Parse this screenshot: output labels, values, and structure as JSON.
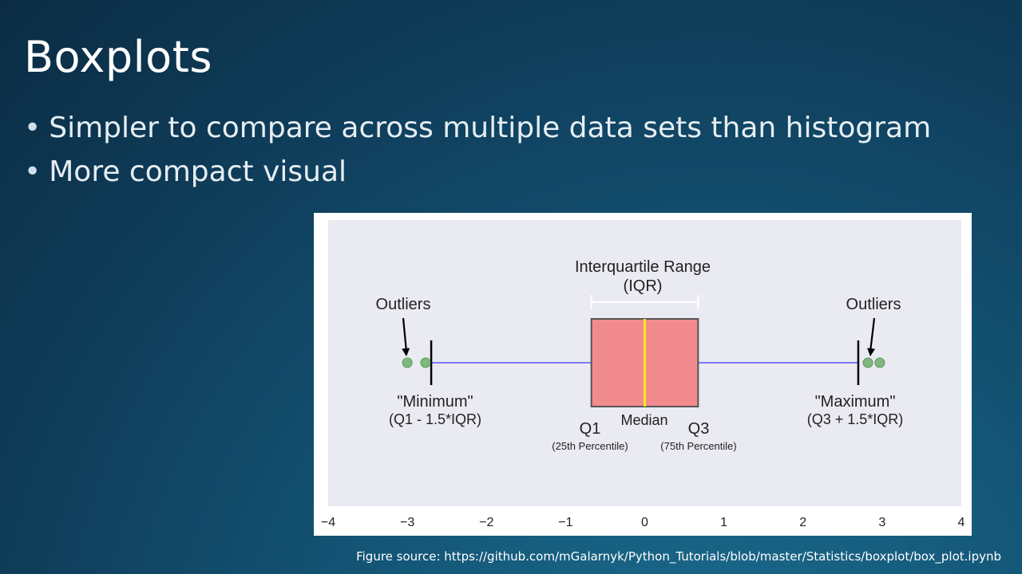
{
  "slide": {
    "title": "Boxplots",
    "bullets": [
      "Simpler to compare across multiple data sets than histogram",
      "More compact visual"
    ],
    "caption": "Figure source:  https://github.com/mGalarnyk/Python_Tutorials/blob/master/Statistics/boxplot/box_plot.ipynb"
  },
  "colors": {
    "plot_bg": "#eaeaf2",
    "box_fill": "#f28b8e",
    "median": "#ffff00",
    "whisker": "#7a7aff",
    "outlier": "#7fb77e"
  },
  "chart_data": {
    "type": "boxplot",
    "x_ticks": [
      "−4",
      "−3",
      "−2",
      "−1",
      "0",
      "1",
      "2",
      "3",
      "4"
    ],
    "xlim": [
      -4,
      4
    ],
    "q1": -0.6745,
    "median": 0,
    "q3": 0.6745,
    "whisker_low": -2.698,
    "whisker_high": 2.698,
    "outliers": [
      -3.0,
      -2.77,
      2.82,
      2.97
    ],
    "annotations": {
      "iqr_line1": "Interquartile Range",
      "iqr_line2": "(IQR)",
      "outliers_left": "Outliers",
      "outliers_right": "Outliers",
      "minimum": "\"Minimum\"",
      "minimum_formula": "(Q1 - 1.5*IQR)",
      "maximum": "\"Maximum\"",
      "maximum_formula": "(Q3 + 1.5*IQR)",
      "q1": "Q1",
      "q1_sub": "(25th Percentile)",
      "median": "Median",
      "q3": "Q3",
      "q3_sub": "(75th Percentile)"
    }
  }
}
